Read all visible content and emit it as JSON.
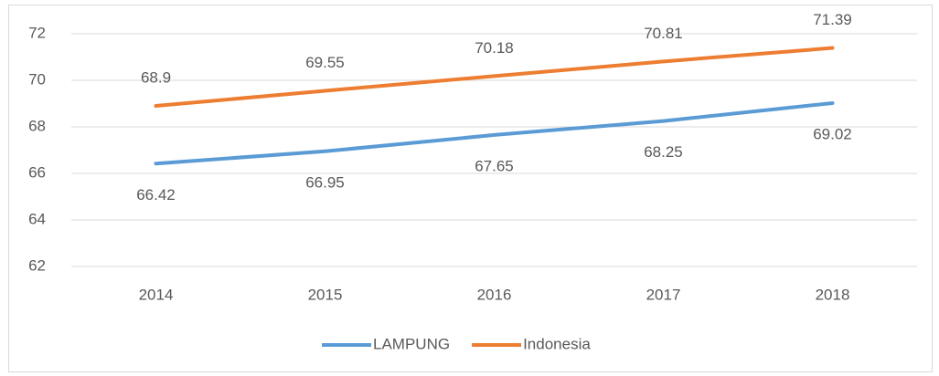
{
  "chart_data": {
    "type": "line",
    "categories": [
      "2014",
      "2015",
      "2016",
      "2017",
      "2018"
    ],
    "series": [
      {
        "name": "LAMPUNG",
        "color": "#5b9bd5",
        "values": [
          66.42,
          66.95,
          67.65,
          68.25,
          69.02
        ]
      },
      {
        "name": "Indonesia",
        "color": "#ed7d31",
        "values": [
          68.9,
          69.55,
          70.18,
          70.81,
          71.39
        ]
      }
    ],
    "ylim": [
      62,
      72
    ],
    "yticks": [
      62,
      64,
      66,
      68,
      70,
      72
    ],
    "grid": true,
    "legend": "bottom"
  }
}
